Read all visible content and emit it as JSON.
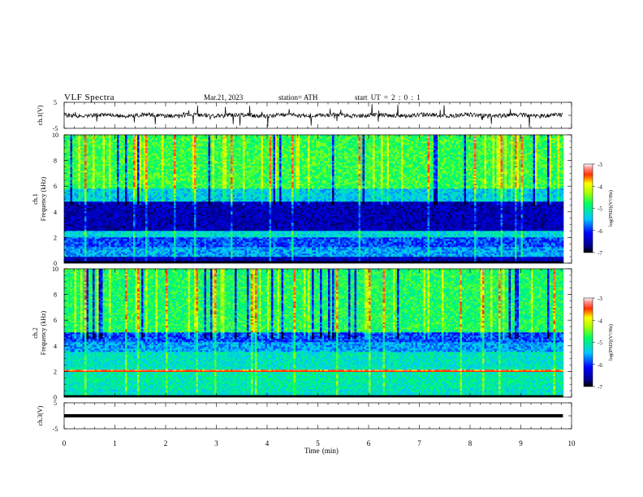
{
  "header": {
    "title": "VLF  Spectra",
    "date": "Mar.21, 2023",
    "station": "station= ATH",
    "start": "start  UT  =   2  : 0   : 1"
  },
  "chart_data": [
    {
      "type": "line",
      "ylabel": "ch.1(V)",
      "ylim": [
        -5,
        5
      ],
      "yticks": [
        "5",
        "-5"
      ],
      "x_range": [
        0,
        10
      ],
      "color": "#000000"
    },
    {
      "type": "heatmap",
      "ylabel_channel": "ch.1",
      "ylabel": "Frequency  (kHz)",
      "ylim": [
        0,
        10
      ],
      "yticks": [
        "0",
        "2",
        "4",
        "6",
        "8",
        "10"
      ],
      "colorbar": {
        "label": "log(PSD)(V²/Hz)",
        "range": [
          -7,
          -3
        ],
        "ticks": [
          "-3",
          "-4",
          "-5",
          "-6",
          "-7"
        ]
      },
      "bands": [
        {
          "from": 0,
          "to": 0.5,
          "level": -6.5
        },
        {
          "from": 0.5,
          "to": 1.2,
          "level": -5.6
        },
        {
          "from": 1.2,
          "to": 2.0,
          "level": -5.9
        },
        {
          "from": 2.0,
          "to": 2.5,
          "level": -5.3
        },
        {
          "from": 2.5,
          "to": 4.8,
          "level": -6.5
        },
        {
          "from": 4.8,
          "to": 5.8,
          "level": -5.4
        },
        {
          "from": 5.8,
          "to": 10,
          "level": -4.7
        }
      ]
    },
    {
      "type": "heatmap",
      "ylabel_channel": "ch.2",
      "ylabel": "Frequency  (kHz)",
      "ylim": [
        0,
        10
      ],
      "yticks": [
        "0",
        "2",
        "4",
        "6",
        "8",
        "10"
      ],
      "colorbar": {
        "label": "log(PSD)(V²/Hz)",
        "range": [
          -7,
          -3
        ],
        "ticks": [
          "-3",
          "-4",
          "-5",
          "-6",
          "-7"
        ]
      },
      "bands": [
        {
          "from": 0,
          "to": 0.6,
          "level": -5.2
        },
        {
          "from": 0.6,
          "to": 1.9,
          "level": -5.1
        },
        {
          "from": 1.9,
          "to": 2.1,
          "level": -3.6
        },
        {
          "from": 2.1,
          "to": 3.5,
          "level": -5.2
        },
        {
          "from": 3.5,
          "to": 4.2,
          "level": -5.6
        },
        {
          "from": 4.2,
          "to": 5.0,
          "level": -5.9
        },
        {
          "from": 5.0,
          "to": 10,
          "level": -4.8
        }
      ]
    },
    {
      "type": "line",
      "ylabel": "ch.3(V)",
      "ylim": [
        -5,
        5
      ],
      "yticks": [
        "5",
        "-5"
      ],
      "x_range": [
        0,
        10
      ],
      "constant_value": 0,
      "color": "#000000"
    }
  ],
  "xaxis": {
    "label": "Time  (min)",
    "ticks": [
      "0",
      "1",
      "2",
      "3",
      "4",
      "5",
      "6",
      "7",
      "8",
      "9",
      "10"
    ],
    "data_end": 9.83
  }
}
